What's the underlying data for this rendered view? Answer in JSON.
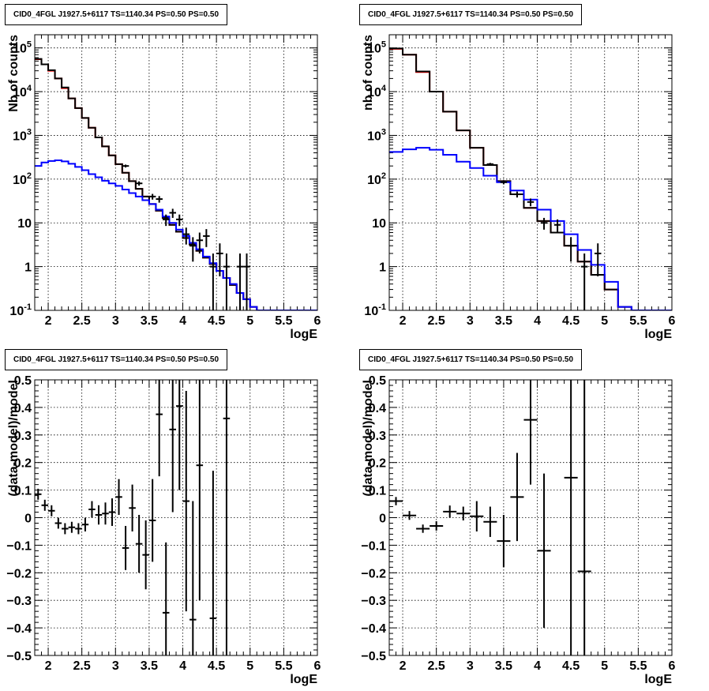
{
  "chart_data": [
    {
      "id": "top-left",
      "type": "line",
      "title": "CID0_4FGL J1927.5+6117 TS=1140.34 PS=0.50 PS=0.50",
      "xlabel": "logE",
      "ylabel": "Nb of counts",
      "xlim": [
        1.8,
        6.0
      ],
      "ylim": [
        0.1,
        200000
      ],
      "ylog": true,
      "grid": true,
      "x_ticks": [
        "2",
        "2.5",
        "3",
        "3.5",
        "4",
        "4.5",
        "5",
        "5.5",
        "6"
      ],
      "y_ticks": [
        "10^{-1}",
        "1",
        "10",
        "10^{2}",
        "10^{3}",
        "10^{4}",
        "10^{5}"
      ],
      "bin_edges": [
        1.8,
        1.9,
        2.0,
        2.1,
        2.2,
        2.3,
        2.4,
        2.5,
        2.6,
        2.7,
        2.8,
        2.9,
        3.0,
        3.1,
        3.2,
        3.3,
        3.4,
        3.5,
        3.6,
        3.7,
        3.8,
        3.9,
        4.0,
        4.1,
        4.2,
        4.3,
        4.4,
        4.5,
        4.6,
        4.7,
        4.8,
        4.9,
        5.0,
        5.1,
        5.2,
        5.3,
        5.4,
        5.5,
        5.6,
        5.7,
        5.8,
        5.9,
        6.0
      ],
      "series": [
        {
          "color": "#ff0000",
          "values": [
            55000,
            42000,
            30000,
            20000,
            12000,
            7000,
            4200,
            2500,
            1500,
            900,
            560,
            350,
            220,
            140,
            90,
            60,
            40,
            27,
            19,
            13,
            9,
            6.3,
            4.5,
            3.2,
            2.3,
            1.6,
            1.15,
            0.8,
            0.55,
            0.38,
            0.25,
            0.18,
            0.12,
            0.1,
            0.1,
            0.1,
            0.1,
            0.1,
            0.1,
            0.1,
            0.1,
            0.1
          ]
        },
        {
          "color": "#000000",
          "values": [
            56000,
            42000,
            31000,
            20000,
            12500,
            7000,
            4200,
            2500,
            1500,
            900,
            560,
            350,
            220,
            140,
            90,
            60,
            40,
            27,
            19,
            13,
            9,
            6.3,
            4.5,
            3.2,
            2.3,
            1.6,
            1.15,
            0.8,
            0.55,
            0.38,
            0.25,
            0.18,
            0.12,
            0.1,
            0.1,
            0.1,
            0.1,
            0.1,
            0.1,
            0.1,
            0.1,
            0.1
          ]
        },
        {
          "color": "#0000ff",
          "values": [
            200,
            240,
            260,
            270,
            255,
            225,
            190,
            160,
            130,
            110,
            92,
            80,
            70,
            58,
            48,
            40,
            33,
            27,
            20,
            14,
            10,
            7,
            5,
            3.5,
            2.5,
            1.7,
            1.2,
            0.8,
            0.55,
            0.4,
            0.25,
            0.18,
            0.12,
            0.1,
            0.1,
            0.1,
            0.1,
            0.1,
            0.1,
            0.1,
            0.1,
            0.1
          ]
        }
      ],
      "points": [
        {
          "x": 3.15,
          "y": 200,
          "lo": 185,
          "hi": 215
        },
        {
          "x": 3.35,
          "y": 80,
          "lo": 71,
          "hi": 89
        },
        {
          "x": 3.55,
          "y": 40,
          "lo": 34,
          "hi": 46
        },
        {
          "x": 3.65,
          "y": 35,
          "lo": 29,
          "hi": 41
        },
        {
          "x": 3.75,
          "y": 12,
          "lo": 8.5,
          "hi": 15.5
        },
        {
          "x": 3.85,
          "y": 17,
          "lo": 13,
          "hi": 21
        },
        {
          "x": 3.95,
          "y": 12,
          "lo": 8.5,
          "hi": 15.5
        },
        {
          "x": 4.05,
          "y": 5.5,
          "lo": 3.2,
          "hi": 7.8
        },
        {
          "x": 4.15,
          "y": 3,
          "lo": 1.3,
          "hi": 4.7
        },
        {
          "x": 4.25,
          "y": 4,
          "lo": 2,
          "hi": 6
        },
        {
          "x": 4.35,
          "y": 5,
          "lo": 2.8,
          "hi": 7.2
        },
        {
          "x": 4.45,
          "y": 1,
          "lo": 0.1,
          "hi": 2
        },
        {
          "x": 4.55,
          "y": 2,
          "lo": 0.6,
          "hi": 3.4
        },
        {
          "x": 4.65,
          "y": 1,
          "lo": 0.1,
          "hi": 2
        },
        {
          "x": 4.85,
          "y": 1,
          "lo": 0.1,
          "hi": 2
        },
        {
          "x": 4.95,
          "y": 1,
          "lo": 0.1,
          "hi": 2
        }
      ]
    },
    {
      "id": "top-right",
      "type": "line",
      "title": "CID0_4FGL J1927.5+6117 TS=1140.34 PS=0.50 PS=0.50",
      "xlabel": "logE",
      "ylabel": "nb of counts",
      "xlim": [
        1.8,
        6.0
      ],
      "ylim": [
        0.1,
        200000
      ],
      "ylog": true,
      "grid": true,
      "x_ticks": [
        "2",
        "2.5",
        "3",
        "3.5",
        "4",
        "4.5",
        "5",
        "5.5",
        "6"
      ],
      "y_ticks": [
        "10^{-1}",
        "1",
        "10",
        "10^{2}",
        "10^{3}",
        "10^{4}",
        "10^{5}"
      ],
      "bin_edges": [
        1.8,
        2.0,
        2.2,
        2.4,
        2.6,
        2.8,
        3.0,
        3.2,
        3.4,
        3.6,
        3.8,
        4.0,
        4.2,
        4.4,
        4.6,
        4.8,
        5.0,
        5.2,
        5.4,
        5.6,
        5.8,
        6.0
      ],
      "series": [
        {
          "color": "#ff0000",
          "values": [
            95000,
            70000,
            28000,
            10000,
            3500,
            1300,
            520,
            210,
            90,
            45,
            22,
            11,
            6,
            3,
            1.3,
            0.65,
            0.3,
            0.12,
            0.1,
            0.1,
            0.1
          ]
        },
        {
          "color": "#000000",
          "values": [
            97000,
            70000,
            29000,
            10000,
            3500,
            1300,
            520,
            210,
            90,
            45,
            22,
            11,
            6,
            3,
            1.3,
            0.65,
            0.3,
            0.12,
            0.1,
            0.1,
            0.1
          ]
        },
        {
          "color": "#0000ff",
          "values": [
            420,
            480,
            520,
            470,
            360,
            250,
            180,
            120,
            85,
            55,
            34,
            20,
            11,
            5.5,
            2.4,
            1.1,
            0.45,
            0.12,
            0.1,
            0.1,
            0.1
          ]
        }
      ],
      "points": [
        {
          "x": 3.3,
          "y": 220,
          "lo": 205,
          "hi": 235
        },
        {
          "x": 3.5,
          "y": 85,
          "lo": 76,
          "hi": 94
        },
        {
          "x": 3.7,
          "y": 45,
          "lo": 38,
          "hi": 52
        },
        {
          "x": 3.9,
          "y": 30,
          "lo": 24,
          "hi": 36
        },
        {
          "x": 4.1,
          "y": 10,
          "lo": 7,
          "hi": 13
        },
        {
          "x": 4.3,
          "y": 9,
          "lo": 6,
          "hi": 12
        },
        {
          "x": 4.5,
          "y": 3,
          "lo": 1.3,
          "hi": 4.7
        },
        {
          "x": 4.7,
          "y": 1,
          "lo": 0.1,
          "hi": 2
        },
        {
          "x": 4.9,
          "y": 2,
          "lo": 0.6,
          "hi": 3.4
        }
      ]
    },
    {
      "id": "bottom-left",
      "type": "scatter",
      "title": "CID0_4FGL J1927.5+6117 TS=1140.34 PS=0.50 PS=0.50",
      "xlabel": "logE",
      "ylabel": "(data-model)/model",
      "xlim": [
        1.8,
        6.0
      ],
      "ylim": [
        -0.5,
        0.5
      ],
      "ylog": false,
      "grid": true,
      "x_ticks": [
        "2",
        "2.5",
        "3",
        "3.5",
        "4",
        "4.5",
        "5",
        "5.5",
        "6"
      ],
      "y_ticks": [
        "−0.5",
        "−0.4",
        "−0.3",
        "−0.2",
        "−0.1",
        "0",
        "0.1",
        "0.2",
        "0.3",
        "0.4",
        "0.5"
      ],
      "xhalf": 0.05,
      "points": [
        {
          "x": 1.85,
          "y": 0.085,
          "lo": 0.065,
          "hi": 0.105
        },
        {
          "x": 1.95,
          "y": 0.045,
          "lo": 0.025,
          "hi": 0.065
        },
        {
          "x": 2.05,
          "y": 0.025,
          "lo": 0.005,
          "hi": 0.045
        },
        {
          "x": 2.15,
          "y": -0.02,
          "lo": -0.04,
          "hi": 0.0
        },
        {
          "x": 2.25,
          "y": -0.04,
          "lo": -0.06,
          "hi": -0.02
        },
        {
          "x": 2.35,
          "y": -0.035,
          "lo": -0.055,
          "hi": -0.015
        },
        {
          "x": 2.45,
          "y": -0.04,
          "lo": -0.06,
          "hi": -0.02
        },
        {
          "x": 2.55,
          "y": -0.025,
          "lo": -0.05,
          "hi": 0.0
        },
        {
          "x": 2.65,
          "y": 0.03,
          "lo": 0.0,
          "hi": 0.06
        },
        {
          "x": 2.75,
          "y": 0.01,
          "lo": -0.025,
          "hi": 0.045
        },
        {
          "x": 2.85,
          "y": 0.015,
          "lo": -0.025,
          "hi": 0.055
        },
        {
          "x": 2.95,
          "y": 0.02,
          "lo": -0.03,
          "hi": 0.07
        },
        {
          "x": 3.05,
          "y": 0.075,
          "lo": 0.01,
          "hi": 0.14
        },
        {
          "x": 3.15,
          "y": -0.11,
          "lo": -0.19,
          "hi": -0.03
        },
        {
          "x": 3.25,
          "y": 0.035,
          "lo": -0.05,
          "hi": 0.12
        },
        {
          "x": 3.35,
          "y": -0.095,
          "lo": -0.2,
          "hi": 0.01
        },
        {
          "x": 3.45,
          "y": -0.135,
          "lo": -0.26,
          "hi": -0.01
        },
        {
          "x": 3.55,
          "y": -0.01,
          "lo": -0.16,
          "hi": 0.14
        },
        {
          "x": 3.65,
          "y": 0.375,
          "lo": 0.15,
          "hi": 0.6
        },
        {
          "x": 3.75,
          "y": -0.345,
          "lo": -0.6,
          "hi": -0.09
        },
        {
          "x": 3.85,
          "y": 0.32,
          "lo": 0.02,
          "hi": 0.62
        },
        {
          "x": 3.95,
          "y": 0.405,
          "lo": 0.1,
          "hi": 0.71
        },
        {
          "x": 4.05,
          "y": 0.06,
          "lo": -0.34,
          "hi": 0.46
        },
        {
          "x": 4.15,
          "y": -0.37,
          "lo": -0.8,
          "hi": 0.06
        },
        {
          "x": 4.25,
          "y": 0.19,
          "lo": -0.3,
          "hi": 0.68
        },
        {
          "x": 4.45,
          "y": -0.365,
          "lo": -0.9,
          "hi": 0.17
        },
        {
          "x": 4.65,
          "y": 0.36,
          "lo": -0.6,
          "hi": 1.3
        }
      ]
    },
    {
      "id": "bottom-right",
      "type": "scatter",
      "title": "CID0_4FGL J1927.5+6117 TS=1140.34 PS=0.50 PS=0.50",
      "xlabel": "logE",
      "ylabel": "(data-model)/model",
      "xlim": [
        1.8,
        6.0
      ],
      "ylim": [
        -0.5,
        0.5
      ],
      "ylog": false,
      "grid": true,
      "x_ticks": [
        "2",
        "2.5",
        "3",
        "3.5",
        "4",
        "4.5",
        "5",
        "5.5",
        "6"
      ],
      "y_ticks": [
        "−0.5",
        "−0.4",
        "−0.3",
        "−0.2",
        "−0.1",
        "0",
        "0.1",
        "0.2",
        "0.3",
        "0.4",
        "0.5"
      ],
      "xhalf": 0.1,
      "points": [
        {
          "x": 1.9,
          "y": 0.06,
          "lo": 0.045,
          "hi": 0.075
        },
        {
          "x": 2.1,
          "y": 0.008,
          "lo": -0.008,
          "hi": 0.024
        },
        {
          "x": 2.3,
          "y": -0.04,
          "lo": -0.055,
          "hi": -0.025
        },
        {
          "x": 2.5,
          "y": -0.03,
          "lo": -0.047,
          "hi": -0.013
        },
        {
          "x": 2.7,
          "y": 0.022,
          "lo": 0.0,
          "hi": 0.044
        },
        {
          "x": 2.9,
          "y": 0.015,
          "lo": -0.01,
          "hi": 0.04
        },
        {
          "x": 3.1,
          "y": 0.005,
          "lo": -0.05,
          "hi": 0.06
        },
        {
          "x": 3.3,
          "y": -0.015,
          "lo": -0.07,
          "hi": 0.04
        },
        {
          "x": 3.5,
          "y": -0.085,
          "lo": -0.18,
          "hi": 0.01
        },
        {
          "x": 3.7,
          "y": 0.075,
          "lo": -0.085,
          "hi": 0.235
        },
        {
          "x": 3.9,
          "y": 0.355,
          "lo": 0.12,
          "hi": 0.59
        },
        {
          "x": 4.1,
          "y": -0.12,
          "lo": -0.4,
          "hi": 0.16
        },
        {
          "x": 4.5,
          "y": 0.145,
          "lo": -0.55,
          "hi": 0.85
        },
        {
          "x": 4.7,
          "y": -0.195,
          "lo": -0.9,
          "hi": 0.5
        }
      ]
    }
  ]
}
